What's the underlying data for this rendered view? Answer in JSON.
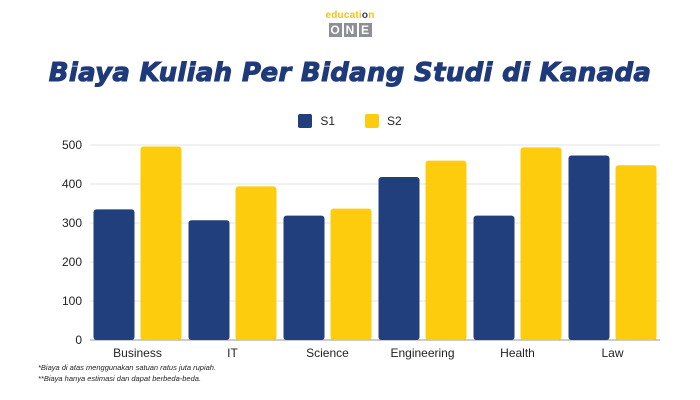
{
  "brand": {
    "logo_top": "educati",
    "logo_o": "o",
    "logo_end": "n",
    "logo_letters": [
      "O",
      "N",
      "E"
    ]
  },
  "colors": {
    "s1": "#213f7d",
    "s2": "#fdcc0d",
    "grid": "#e3e3e3",
    "axis": "#9a9a9a",
    "title": "#1f3a7a"
  },
  "chart_data": {
    "type": "bar",
    "title": "Biaya Kuliah Per Bidang Studi di Kanada",
    "categories": [
      "Business",
      "IT",
      "Science",
      "Engineering",
      "Health",
      "Law"
    ],
    "series": [
      {
        "name": "S1",
        "values": [
          335,
          307,
          319,
          418,
          319,
          473
        ]
      },
      {
        "name": "S2",
        "values": [
          496,
          394,
          337,
          460,
          494,
          448
        ]
      }
    ],
    "ylim": [
      0,
      500
    ],
    "yticks": [
      0,
      100,
      200,
      300,
      400,
      500
    ],
    "grid": true,
    "legend": "top-center",
    "xlabel": "",
    "ylabel": ""
  },
  "notes": [
    "*Biaya di atas menggunakan satuan ratus juta rupiah.",
    "**Biaya hanya estimasi dan dapat berbeda-beda."
  ]
}
